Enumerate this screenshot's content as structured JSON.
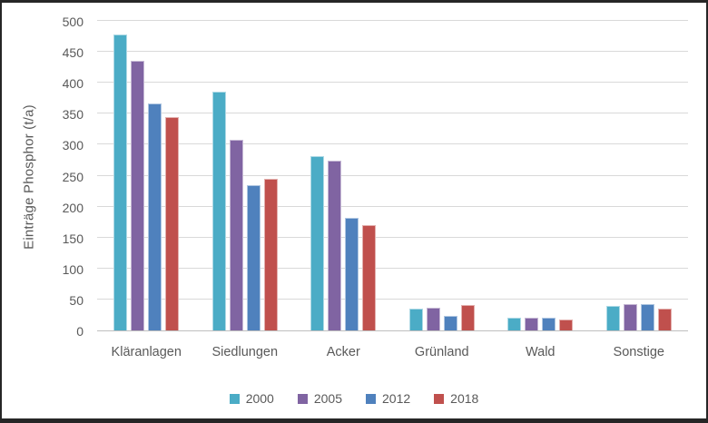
{
  "chart_data": {
    "type": "bar",
    "title": "",
    "xlabel": "",
    "ylabel": "Einträge Phosphor (t/a)",
    "ylim": [
      0,
      500
    ],
    "yticks": [
      0,
      50,
      100,
      150,
      200,
      250,
      300,
      350,
      400,
      450,
      500
    ],
    "grid": true,
    "legend_position": "bottom",
    "categories": [
      "Kläranlagen",
      "Siedlungen",
      "Acker",
      "Grünland",
      "Wald",
      "Sonstige"
    ],
    "series": [
      {
        "name": "2000",
        "color": "#4BACC6",
        "values": [
          478,
          385,
          282,
          35,
          20,
          40
        ]
      },
      {
        "name": "2005",
        "color": "#8064A2",
        "values": [
          435,
          308,
          274,
          37,
          21,
          42
        ]
      },
      {
        "name": "2012",
        "color": "#4F81BD",
        "values": [
          366,
          234,
          182,
          24,
          21,
          42
        ]
      },
      {
        "name": "2018",
        "color": "#C0504D",
        "values": [
          345,
          245,
          170,
          41,
          17,
          35
        ]
      }
    ],
    "colors": {
      "gridline": "#d9d9d9",
      "axis_line": "#bfbfbf",
      "text": "#595959"
    }
  }
}
